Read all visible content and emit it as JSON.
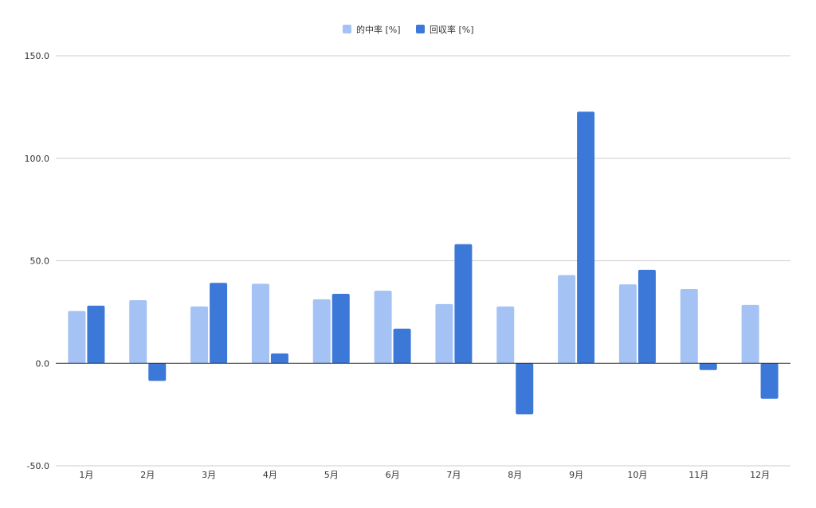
{
  "chart_data": {
    "type": "bar",
    "title": "",
    "xlabel": "",
    "ylabel": "",
    "categories": [
      "1月",
      "2月",
      "3月",
      "4月",
      "5月",
      "6月",
      "7月",
      "8月",
      "9月",
      "10月",
      "11月",
      "12月"
    ],
    "series": [
      {
        "name": "的中率 [%]",
        "color": "#a4c2f4",
        "values": [
          25.5,
          30.8,
          27.7,
          38.8,
          31.2,
          35.4,
          28.9,
          27.7,
          43.0,
          38.5,
          36.2,
          28.5
        ]
      },
      {
        "name": "回収率 [%]",
        "color": "#3c78d8",
        "values": [
          28.1,
          -8.6,
          39.2,
          4.8,
          33.9,
          16.9,
          58.1,
          -24.9,
          122.7,
          45.6,
          -3.3,
          -17.3
        ]
      }
    ],
    "ylim": [
      -50,
      150
    ],
    "yticks": [
      "-50.0",
      "0.0",
      "50.0",
      "100.0",
      "150.0"
    ],
    "ytick_values": [
      -50,
      0,
      50,
      100,
      150
    ],
    "grid": true,
    "legend_position": "top-center"
  }
}
